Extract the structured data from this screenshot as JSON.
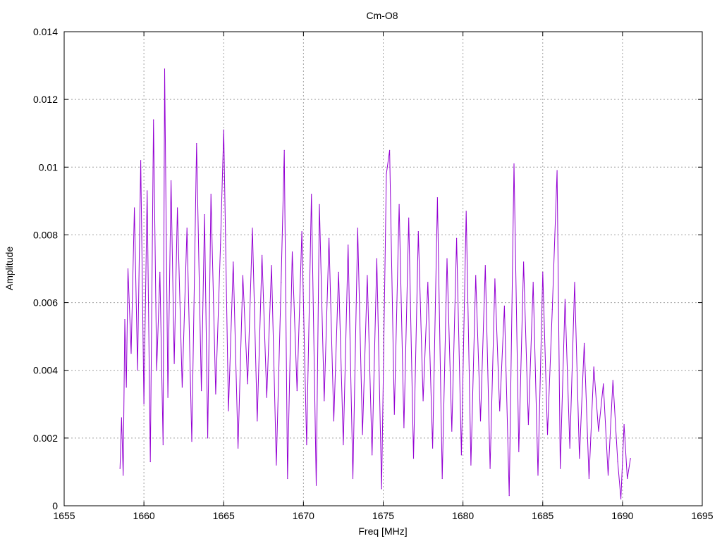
{
  "chart_data": {
    "type": "line",
    "title": "Cm-O8",
    "xlabel": "Freq [MHz]",
    "ylabel": "Amplitude",
    "xlim": [
      1655,
      1695
    ],
    "ylim": [
      0,
      0.014
    ],
    "x_ticks": [
      1655,
      1660,
      1665,
      1670,
      1675,
      1680,
      1685,
      1690,
      1695
    ],
    "x_tick_labels": [
      "1655",
      "1660",
      "1665",
      "1670",
      "1675",
      "1680",
      "1685",
      "1690",
      "1695"
    ],
    "y_ticks": [
      0,
      0.002,
      0.004,
      0.006,
      0.008,
      0.01,
      0.012,
      0.014
    ],
    "y_tick_labels": [
      "0",
      "0.002",
      "0.004",
      "0.006",
      "0.008",
      "0.01",
      "0.012",
      "0.014"
    ],
    "grid": true,
    "legend": "none",
    "series": [
      {
        "color": "#9400d3",
        "x": [
          1658.5,
          1658.6,
          1658.7,
          1658.8,
          1658.9,
          1659.0,
          1659.2,
          1659.4,
          1659.6,
          1659.8,
          1660.0,
          1660.2,
          1660.4,
          1660.6,
          1660.8,
          1661.0,
          1661.2,
          1661.3,
          1661.5,
          1661.7,
          1661.9,
          1662.1,
          1662.4,
          1662.7,
          1663.0,
          1663.3,
          1663.6,
          1663.8,
          1664.0,
          1664.2,
          1664.5,
          1664.8,
          1665.0,
          1665.3,
          1665.6,
          1665.9,
          1666.2,
          1666.5,
          1666.8,
          1667.1,
          1667.4,
          1667.7,
          1668.0,
          1668.3,
          1668.6,
          1668.8,
          1669.0,
          1669.3,
          1669.6,
          1669.9,
          1670.2,
          1670.5,
          1670.8,
          1671.0,
          1671.3,
          1671.6,
          1671.9,
          1672.2,
          1672.5,
          1672.8,
          1673.1,
          1673.4,
          1673.7,
          1674.0,
          1674.3,
          1674.6,
          1674.9,
          1675.2,
          1675.4,
          1675.7,
          1676.0,
          1676.3,
          1676.6,
          1676.9,
          1677.2,
          1677.5,
          1677.8,
          1678.1,
          1678.4,
          1678.7,
          1679.0,
          1679.3,
          1679.6,
          1679.9,
          1680.2,
          1680.5,
          1680.8,
          1681.1,
          1681.4,
          1681.7,
          1682.0,
          1682.3,
          1682.6,
          1682.9,
          1683.2,
          1683.5,
          1683.8,
          1684.1,
          1684.4,
          1684.7,
          1685.0,
          1685.3,
          1685.6,
          1685.9,
          1686.1,
          1686.4,
          1686.7,
          1687.0,
          1687.3,
          1687.6,
          1687.9,
          1688.2,
          1688.5,
          1688.8,
          1689.1,
          1689.4,
          1689.7,
          1689.9,
          1690.1,
          1690.3,
          1690.5
        ],
        "y": [
          0.0011,
          0.0026,
          0.0009,
          0.0055,
          0.0035,
          0.007,
          0.0045,
          0.0088,
          0.004,
          0.0102,
          0.003,
          0.0093,
          0.0013,
          0.0114,
          0.004,
          0.0069,
          0.0018,
          0.0129,
          0.0032,
          0.0096,
          0.0042,
          0.0088,
          0.0035,
          0.0082,
          0.0019,
          0.0107,
          0.0034,
          0.0086,
          0.002,
          0.0092,
          0.0033,
          0.0077,
          0.0111,
          0.0028,
          0.0072,
          0.0017,
          0.0068,
          0.0036,
          0.0082,
          0.0025,
          0.0074,
          0.0032,
          0.0071,
          0.0012,
          0.0066,
          0.0105,
          0.0008,
          0.0075,
          0.0034,
          0.0081,
          0.0018,
          0.0092,
          0.0006,
          0.0089,
          0.0031,
          0.0079,
          0.0025,
          0.0069,
          0.0018,
          0.0077,
          0.0008,
          0.0082,
          0.0021,
          0.0068,
          0.0015,
          0.0073,
          0.0005,
          0.0098,
          0.0105,
          0.0027,
          0.0089,
          0.0023,
          0.0085,
          0.0014,
          0.0081,
          0.0031,
          0.0066,
          0.0017,
          0.0091,
          0.0008,
          0.0073,
          0.0022,
          0.0079,
          0.0015,
          0.0087,
          0.0012,
          0.0068,
          0.0025,
          0.0071,
          0.0011,
          0.0067,
          0.0028,
          0.0059,
          0.0003,
          0.0101,
          0.0016,
          0.0072,
          0.0024,
          0.0066,
          0.0009,
          0.0069,
          0.0021,
          0.0058,
          0.0099,
          0.0011,
          0.0061,
          0.0017,
          0.0066,
          0.0014,
          0.0048,
          0.0008,
          0.0041,
          0.0022,
          0.0036,
          0.0009,
          0.0037,
          0.0013,
          0.0002,
          0.0024,
          0.0008,
          0.0014
        ]
      }
    ]
  }
}
